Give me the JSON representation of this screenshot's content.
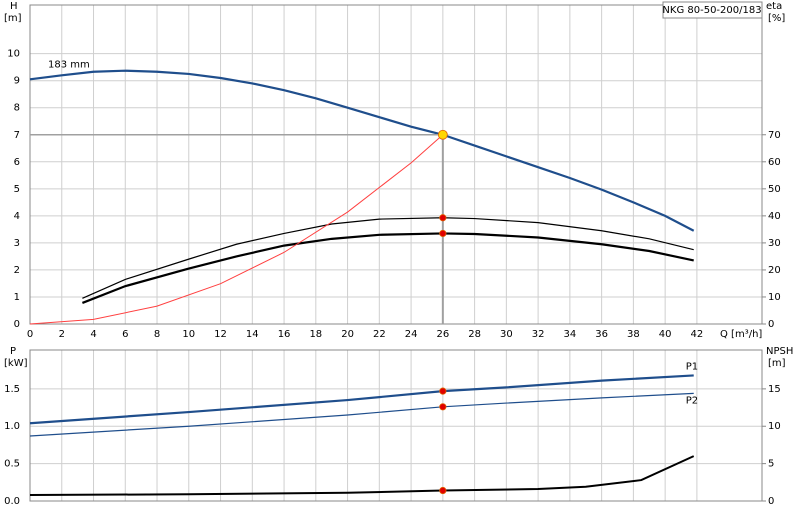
{
  "chart_data": [
    {
      "type": "line",
      "title": "NKG 80-50-200/183",
      "y_label": "H",
      "y_unit": "[m]",
      "y2_label": "eta",
      "y2_unit": "[%]",
      "x_label": "Q [m³/h]",
      "xlim": [
        0,
        46.1
      ],
      "xticks": [
        0,
        2,
        4,
        6,
        8,
        10,
        12,
        14,
        16,
        18,
        20,
        22,
        24,
        26,
        28,
        30,
        32,
        34,
        36,
        38,
        40,
        42
      ],
      "ylim": [
        0,
        11.8
      ],
      "yticks": [
        0,
        1,
        2,
        3,
        4,
        5,
        6,
        7,
        8,
        9,
        10
      ],
      "y2lim": [
        0,
        118
      ],
      "y2ticks": [
        0,
        10,
        20,
        30,
        40,
        50,
        60,
        70
      ],
      "grid": true,
      "dot_x": 26,
      "guide_color": "#a0a0a0",
      "series": [
        {
          "name": "183 mm",
          "color": "#1f4e8c",
          "line_width": 2.2,
          "dot_color": "#ffd700",
          "x": [
            0,
            2,
            4,
            6,
            8,
            10,
            12,
            14,
            16,
            18,
            20,
            22,
            24,
            26,
            28,
            30,
            32,
            34,
            36,
            38,
            40,
            41.8
          ],
          "values": [
            9.05,
            9.2,
            9.33,
            9.37,
            9.33,
            9.25,
            9.1,
            8.9,
            8.65,
            8.35,
            8.0,
            7.65,
            7.3,
            7.0,
            6.6,
            6.2,
            5.8,
            5.4,
            4.97,
            4.5,
            4.0,
            3.45
          ]
        },
        {
          "color": "#000000",
          "line_width": 1.2,
          "axis": "y2",
          "dot_color": "#e00000",
          "x": [
            3.3,
            6,
            10,
            13,
            16,
            19,
            22,
            26,
            28,
            32,
            36,
            39,
            41.8
          ],
          "values": [
            9.5,
            16.5,
            24,
            29.5,
            33.5,
            37,
            38.8,
            39.3,
            39,
            37.5,
            34.5,
            31.5,
            27.5
          ]
        },
        {
          "color": "#000000",
          "line_width": 2.2,
          "axis": "y2",
          "dot_color": "#e00000",
          "x": [
            3.3,
            6,
            10,
            13,
            16,
            19,
            22,
            26,
            28,
            32,
            36,
            39,
            41.8
          ],
          "values": [
            7.8,
            14,
            20.5,
            25,
            29,
            31.5,
            33,
            33.5,
            33.3,
            32,
            29.5,
            27,
            23.5
          ]
        },
        {
          "color": "#ff4040",
          "line_width": 1,
          "x": [
            0,
            4,
            8,
            12,
            16,
            20,
            24,
            26
          ],
          "values": [
            0,
            0.17,
            0.66,
            1.49,
            2.65,
            4.14,
            5.96,
            7.0
          ]
        }
      ]
    },
    {
      "type": "line",
      "y_label": "P",
      "y_unit": "[kW]",
      "y2_label": "NPSH",
      "y2_unit": "[m]",
      "xlim": [
        0,
        46.1
      ],
      "xticks": [
        0,
        2,
        4,
        6,
        8,
        10,
        12,
        14,
        16,
        18,
        20,
        22,
        24,
        26,
        28,
        30,
        32,
        34,
        36,
        38,
        40,
        42
      ],
      "show_xtick_labels": false,
      "ylim": [
        0,
        2.02
      ],
      "yticks": [
        {
          "value": 0,
          "label": "0.0"
        },
        0.5,
        {
          "value": 1,
          "label": "1.0"
        },
        1.5
      ],
      "y2lim": [
        0,
        20.2
      ],
      "y2ticks": [
        0,
        5,
        10,
        15
      ],
      "grid": true,
      "dot_x": 26,
      "series": [
        {
          "name": "P1",
          "color": "#1f4e8c",
          "line_width": 2.2,
          "dot_color": "#e00000",
          "x": [
            0,
            10,
            20,
            26,
            30,
            36,
            41.8
          ],
          "values": [
            1.04,
            1.19,
            1.35,
            1.47,
            1.52,
            1.61,
            1.68
          ]
        },
        {
          "name": "P2",
          "color": "#1f4e8c",
          "line_width": 1.2,
          "dot_color": "#e00000",
          "x": [
            0,
            10,
            20,
            26,
            30,
            36,
            41.8
          ],
          "values": [
            0.87,
            1.0,
            1.15,
            1.26,
            1.31,
            1.38,
            1.44
          ]
        },
        {
          "color": "#000000",
          "line_width": 2,
          "axis": "y2",
          "dot_color": "#e00000",
          "x": [
            0,
            10,
            20,
            26,
            32,
            35,
            38.5,
            41.8
          ],
          "values": [
            0.8,
            0.9,
            1.1,
            1.4,
            1.6,
            1.9,
            2.8,
            6.0
          ]
        }
      ]
    }
  ]
}
